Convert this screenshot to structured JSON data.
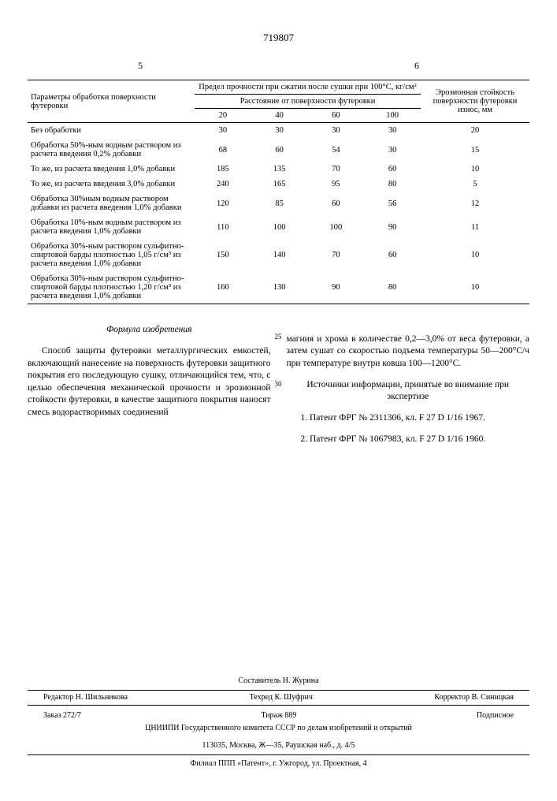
{
  "doc_number": "719807",
  "left_col_num": "5",
  "right_col_num": "6",
  "table": {
    "header_param": "Параметры обработки поверхности футеровки",
    "header_strength": "Предел прочности при сжатии после сушки при 100°С, кг/см²",
    "header_distance": "Расстояние от поверхности футеровки",
    "header_erosion": "Эрозионная стойкость поверхности футеровки износ, мм",
    "dist_cols": [
      "20",
      "40",
      "60",
      "100"
    ],
    "rows": [
      {
        "param": "Без обработки",
        "vals": [
          "30",
          "30",
          "30",
          "30"
        ],
        "erosion": "20"
      },
      {
        "param": "Обработка 50%-ным водным раствором из расчета введения 0,2% добавки",
        "vals": [
          "68",
          "60",
          "54",
          "30"
        ],
        "erosion": "15"
      },
      {
        "param": "То же, из расчета введения 1,0% добавки",
        "vals": [
          "185",
          "135",
          "70",
          "60"
        ],
        "erosion": "10"
      },
      {
        "param": "То же, из расчета введения 3,0% добавки",
        "vals": [
          "240",
          "165",
          "95",
          "80"
        ],
        "erosion": "5"
      },
      {
        "param": "Обработка 30%ным водным раствором добавки из расчета введения 1,0% добавки",
        "vals": [
          "120",
          "85",
          "60",
          "56"
        ],
        "erosion": "12"
      },
      {
        "param": "Обработка 10%-ным водным раствором из расчета введения 1,0% добавки",
        "vals": [
          "110",
          "100",
          "100",
          "90"
        ],
        "erosion": "11"
      },
      {
        "param": "Обработка 30%-ным раствором сульфитно-спиртовой барды плотностью 1,05 г/см³ из расчета введения 1,0% добавки",
        "vals": [
          "150",
          "140",
          "70",
          "60"
        ],
        "erosion": "10"
      },
      {
        "param": "Обработка 30%-ным раствором сульфитно-спиртовой барды плотностью 1,20 г/см³ из расчета введения 1,0% добавки",
        "vals": [
          "160",
          "130",
          "90",
          "80"
        ],
        "erosion": "10"
      }
    ]
  },
  "formula_title": "Формула изобретения",
  "left_text": "Способ защиты футеровки металлургических емкостей, включающий нанесение на поверхность футеровки защитного покрытия его последующую сушку, отличающийся тем, что, с целью обеспечения механической прочности и эрозионной стойкости футеровки, в качестве защитного покрытия наносят смесь водорастворимых соединений",
  "right_text_1": "магния и хрома в количестве 0,2—3,0% от веса футеровки, а затем сушат со скоростью подъема температуры 50—200°С/ч при температуре внутри ковша 100—1200°С.",
  "sources_title": "Источники информации, принятые во внимание при экспертизе",
  "source_1": "1. Патент ФРГ № 2311306, кл. F 27 D 1/16 1967.",
  "source_2": "2. Патент ФРГ № 1067983, кл. F 27 D 1/16 1960.",
  "line_25": "25",
  "line_30": "30",
  "footer": {
    "compiler": "Составитель Н. Журина",
    "editor": "Редактор Н. Шильникова",
    "techred": "Техред К. Шуфрич",
    "corrector": "Корректор В. Синицкая",
    "order": "Заказ 272/7",
    "tirage": "Тираж 889",
    "subscription": "Подписное",
    "org": "ЦНИИПИ Государственного комитета СССР по делам изобретений и открытий",
    "addr": "113035, Москва, Ж—35, Раушская наб., д. 4/5",
    "branch": "Филиал ППП «Патент», г. Ужгород, ул. Проектная, 4"
  }
}
